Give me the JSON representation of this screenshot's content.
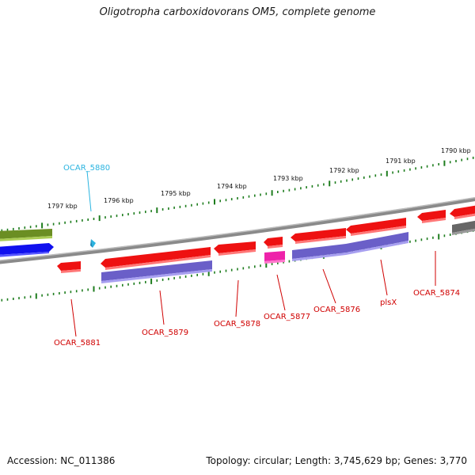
{
  "title": "Oligotropha carboxidovorans OM5, complete genome",
  "footer": {
    "accession": "Accession: NC_011386",
    "summary": "Topology: circular; Length: 3,745,629 bp; Genes: 3,770"
  },
  "colors": {
    "backbone": "#808080",
    "tick": "#1e7d1e",
    "gene_forward_red": "#ee1111",
    "cds_purple": "#7a6fd0",
    "label_red": "#d00000",
    "label_cyan": "#2ab4e0",
    "olive": "#6b8e23",
    "blue": "#1010ee",
    "magenta": "#ee22aa",
    "gray": "#666666"
  },
  "scale_labels": [
    "1797 kbp",
    "1796 kbp",
    "1795 kbp",
    "1794 kbp",
    "1793 kbp",
    "1792 kbp",
    "1791 kbp",
    "1790 kbp"
  ],
  "gene_labels": [
    {
      "text": "OCAR_5880",
      "color": "cyan"
    },
    {
      "text": "OCAR_5881",
      "color": "red"
    },
    {
      "text": "OCAR_5879",
      "color": "red"
    },
    {
      "text": "OCAR_5878",
      "color": "red"
    },
    {
      "text": "OCAR_5877",
      "color": "red"
    },
    {
      "text": "OCAR_5876",
      "color": "red"
    },
    {
      "text": "plsX",
      "color": "red"
    },
    {
      "text": "OCAR_5874",
      "color": "red"
    }
  ]
}
